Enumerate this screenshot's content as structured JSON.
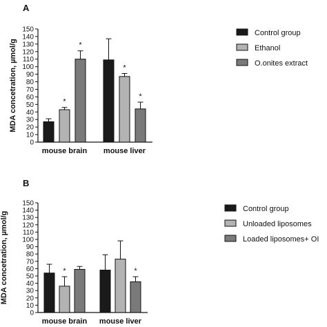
{
  "chart_data": [
    {
      "type": "bar",
      "panel_label": "A",
      "ylabel": "MDA concetration, µmol/g",
      "ylim": [
        0,
        150
      ],
      "yticks": [
        0,
        10,
        20,
        30,
        40,
        50,
        60,
        70,
        80,
        90,
        100,
        110,
        120,
        130,
        140,
        150
      ],
      "categories": [
        "mouse brain",
        "mouse liver"
      ],
      "series": [
        {
          "name": "Control group",
          "color": "#1a1a1a",
          "values": [
            27,
            109
          ],
          "errors": [
            4,
            28
          ],
          "significance": [
            "",
            ""
          ]
        },
        {
          "name": "Ethanol",
          "color": "#b3b3b3",
          "values": [
            43,
            87
          ],
          "errors": [
            3,
            4
          ],
          "significance": [
            "*",
            "*"
          ]
        },
        {
          "name": "O.onites extract",
          "color": "#7a7a7a",
          "values": [
            110,
            44
          ],
          "errors": [
            11,
            9
          ],
          "significance": [
            "*",
            "*"
          ]
        }
      ],
      "legend_position": "right",
      "grid": false
    },
    {
      "type": "bar",
      "panel_label": "B",
      "ylabel": "MDA concetration, µmol/g",
      "ylim": [
        0,
        150
      ],
      "yticks": [
        0,
        10,
        20,
        30,
        40,
        50,
        60,
        70,
        80,
        90,
        100,
        110,
        120,
        130,
        140,
        150
      ],
      "categories": [
        "mouse brain",
        "mouse liver"
      ],
      "series": [
        {
          "name": "Control group",
          "color": "#1a1a1a",
          "values": [
            54,
            58
          ],
          "errors": [
            12,
            21
          ],
          "significance": [
            "",
            ""
          ]
        },
        {
          "name": "Unloaded liposomes",
          "color": "#b3b3b3",
          "values": [
            36,
            73
          ],
          "errors": [
            13,
            25
          ],
          "significance": [
            "*",
            ""
          ]
        },
        {
          "name": "Loaded liposomes+ OI",
          "color": "#7a7a7a",
          "values": [
            59,
            42
          ],
          "errors": [
            4,
            7
          ],
          "significance": [
            "",
            "*"
          ]
        }
      ],
      "legend_position": "right",
      "grid": false
    }
  ]
}
